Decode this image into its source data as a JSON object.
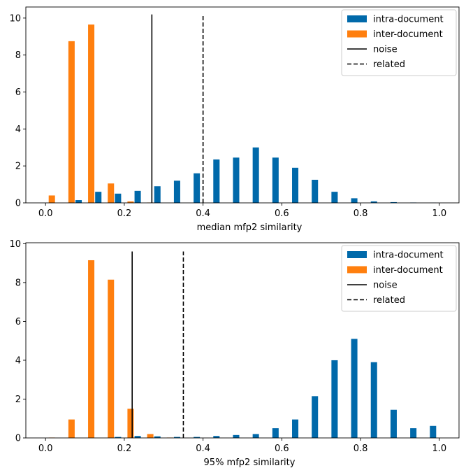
{
  "chart_data": [
    {
      "type": "bar",
      "xlabel": "median mfp2 similarity",
      "ylabel": "",
      "xlim": [
        -0.05,
        1.05
      ],
      "ylim": [
        0,
        10.6
      ],
      "xticks": [
        "0.0",
        "0.2",
        "0.4",
        "0.6",
        "0.8",
        "1.0"
      ],
      "yticks": [
        "0",
        "2",
        "4",
        "6",
        "8",
        "10"
      ],
      "grid": false,
      "legend_position": "top-right",
      "bin_centers": [
        0.025,
        0.075,
        0.125,
        0.175,
        0.225,
        0.275,
        0.325,
        0.375,
        0.425,
        0.475,
        0.525,
        0.575,
        0.625,
        0.675,
        0.725,
        0.775,
        0.825,
        0.875,
        0.925,
        0.975
      ],
      "series": [
        {
          "name": "intra-document",
          "color": "#0069aa",
          "values": [
            0,
            0.15,
            0.6,
            0.5,
            0.65,
            0.9,
            1.2,
            1.6,
            2.35,
            2.45,
            3.0,
            2.45,
            1.9,
            1.25,
            0.6,
            0.25,
            0.08,
            0.04,
            0.02,
            0.01
          ]
        },
        {
          "name": "inter-document",
          "color": "#ff7f0e",
          "values": [
            0.4,
            8.75,
            9.65,
            1.05,
            0.08,
            0.02,
            0,
            0,
            0,
            0,
            0,
            0,
            0,
            0,
            0,
            0,
            0,
            0,
            0,
            0
          ]
        }
      ],
      "vlines": [
        {
          "name": "noise",
          "x": 0.27,
          "style": "solid",
          "y_top": 10.2
        },
        {
          "name": "related",
          "x": 0.4,
          "style": "dashed",
          "y_top": 10.2
        }
      ]
    },
    {
      "type": "bar",
      "xlabel": "95% mfp2 similarity",
      "ylabel": "",
      "xlim": [
        -0.05,
        1.05
      ],
      "ylim": [
        0,
        10.05
      ],
      "xticks": [
        "0.0",
        "0.2",
        "0.4",
        "0.6",
        "0.8",
        "1.0"
      ],
      "yticks": [
        "0",
        "2",
        "4",
        "6",
        "8",
        "10"
      ],
      "grid": false,
      "legend_position": "top-right",
      "bin_centers": [
        0.025,
        0.075,
        0.125,
        0.175,
        0.225,
        0.275,
        0.325,
        0.375,
        0.425,
        0.475,
        0.525,
        0.575,
        0.625,
        0.675,
        0.725,
        0.775,
        0.825,
        0.875,
        0.925,
        0.975
      ],
      "series": [
        {
          "name": "intra-document",
          "color": "#0069aa",
          "values": [
            0,
            0,
            0,
            0.05,
            0.1,
            0.08,
            0.05,
            0.05,
            0.1,
            0.15,
            0.2,
            0.5,
            0.95,
            2.15,
            4.0,
            5.1,
            3.9,
            1.45,
            0.5,
            0.62
          ]
        },
        {
          "name": "inter-document",
          "color": "#ff7f0e",
          "values": [
            0.02,
            0.95,
            9.15,
            8.15,
            1.5,
            0.2,
            0.02,
            0,
            0,
            0,
            0,
            0,
            0,
            0,
            0,
            0,
            0,
            0,
            0,
            0
          ]
        }
      ],
      "vlines": [
        {
          "name": "noise",
          "x": 0.22,
          "style": "solid",
          "y_top": 9.6
        },
        {
          "name": "related",
          "x": 0.35,
          "style": "dashed",
          "y_top": 9.6
        }
      ]
    }
  ]
}
